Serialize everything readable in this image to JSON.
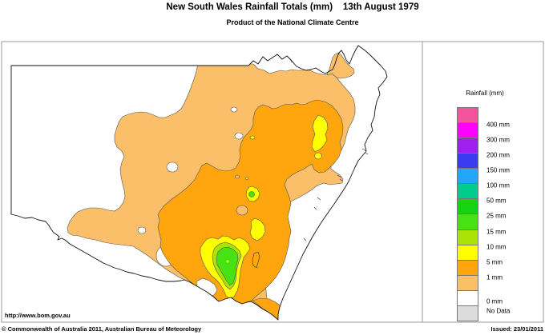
{
  "header": {
    "title": "New South Wales Rainfall Totals (mm)    13th August 1979",
    "subtitle": "Product of the National Climate Centre"
  },
  "legend": {
    "title": "Rainfall (mm)",
    "items": [
      {
        "band": "gt400",
        "label": "400 mm",
        "color": "#F4549B"
      },
      {
        "band": "400",
        "label": "300 mm",
        "color": "#FF00FF"
      },
      {
        "band": "300",
        "label": "200 mm",
        "color": "#A01FEE"
      },
      {
        "band": "200",
        "label": "150 mm",
        "color": "#3B3BF2"
      },
      {
        "band": "150",
        "label": "100 mm",
        "color": "#22A7FF"
      },
      {
        "band": "100",
        "label": "50 mm",
        "color": "#00CC8C"
      },
      {
        "band": "50",
        "label": "25 mm",
        "color": "#16D312"
      },
      {
        "band": "25",
        "label": "15 mm",
        "color": "#47E214"
      },
      {
        "band": "15",
        "label": "10 mm",
        "color": "#ABE308"
      },
      {
        "band": "10",
        "label": "5 mm",
        "color": "#FFFF00"
      },
      {
        "band": "5",
        "label": "1 mm",
        "color": "#FFA60E"
      },
      {
        "band": "1",
        "label": "0 mm",
        "color": "#FBBE69"
      },
      {
        "band": "0",
        "label": "No Data",
        "color": "#FFFFFF"
      },
      {
        "band": "nodata",
        "label": "",
        "color": "#DCDCDC"
      }
    ],
    "note": "labels mark band boundaries; top pink band is above 400 mm"
  },
  "map": {
    "region_label": "New South Wales",
    "bands_visible_mm": [
      "0",
      "1",
      "5",
      "10",
      "15",
      "25"
    ],
    "summary": "1-5 mm totals over most of central NSW; 5-10 mm band through the central east; 10-25 mm pockets in the northeast and south-central inland; far west and southeast coastal strip 0 mm."
  },
  "footer": {
    "url": "http://www.bom.gov.au",
    "copyright": "© Commonwealth of Australia 2011, Australian Bureau of Meteorology",
    "issued": "Issued: 23/01/2011"
  }
}
